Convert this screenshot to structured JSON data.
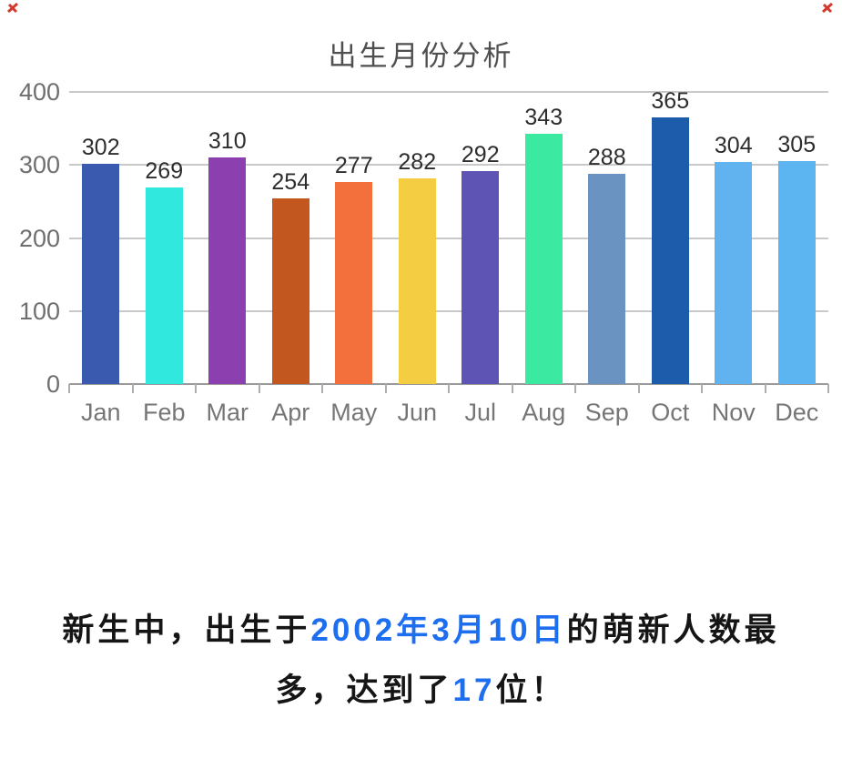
{
  "chart_data": {
    "type": "bar",
    "title": "出生月份分析",
    "categories": [
      "Jan",
      "Feb",
      "Mar",
      "Apr",
      "May",
      "Jun",
      "Jul",
      "Aug",
      "Sep",
      "Oct",
      "Nov",
      "Dec"
    ],
    "values": [
      302,
      269,
      310,
      254,
      277,
      282,
      292,
      343,
      288,
      365,
      304,
      305
    ],
    "bar_colors": [
      "#3a5ab0",
      "#30e8de",
      "#8c3fae",
      "#c2571f",
      "#f3703d",
      "#f5cd42",
      "#5d54b4",
      "#3be9a1",
      "#6b93c2",
      "#1d5cab",
      "#60b3ee",
      "#5cb4f0"
    ],
    "xlabel": "",
    "ylabel": "",
    "ylim": [
      0,
      400
    ],
    "yticks": [
      0,
      100,
      200,
      300,
      400
    ],
    "grid": "horizontal",
    "legend": "none",
    "value_labels": true,
    "title_color": "#4f4f4f",
    "axis_label_color": "#767676",
    "value_label_color": "#2d2d2d",
    "gridline_color": "#c9c9c9"
  },
  "caption": {
    "line1_prefix": "新生中，出生于",
    "line1_highlight": "2002年3月10日",
    "line1_suffix": "的萌新人数最",
    "line2_prefix": "多，达到了",
    "line2_highlight": "17",
    "line2_suffix": "位！",
    "text_color": "#151515",
    "highlight_color": "#1e6ef0"
  },
  "decorations": {
    "corner_mark_color": "#d23a2e"
  }
}
